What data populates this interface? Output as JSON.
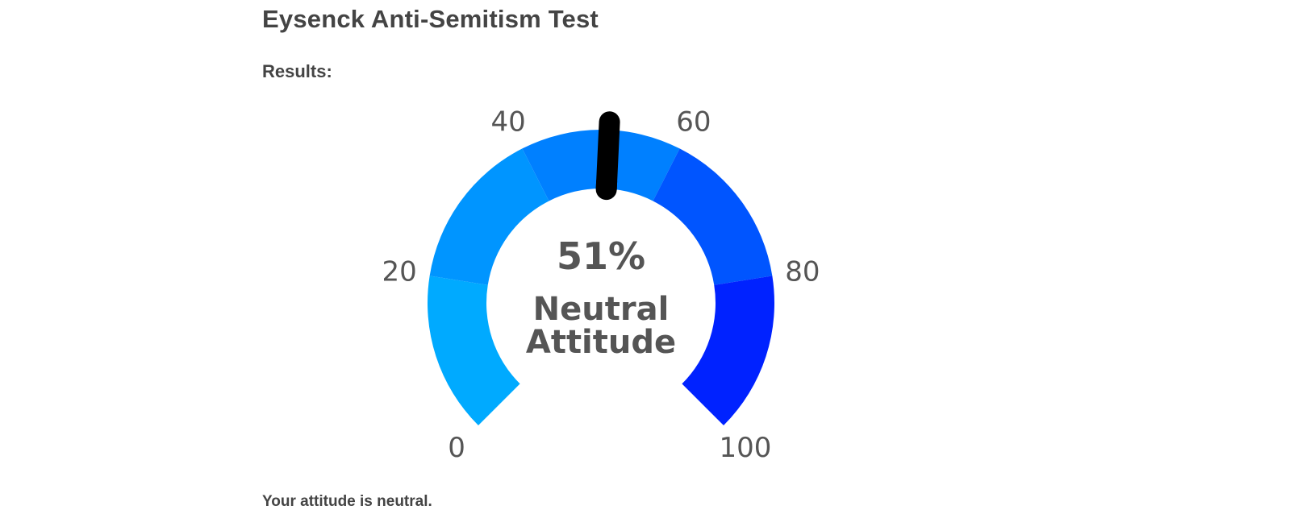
{
  "page": {
    "title": "Eysenck Anti-Semitism Test",
    "results_label": "Results:",
    "summary": "Your attitude is neutral."
  },
  "gauge": {
    "value": 51,
    "value_text": "51%",
    "label_line1": "Neutral",
    "label_line2": "Attitude",
    "min": 0,
    "max": 100,
    "ticks": [
      {
        "value": 0,
        "text": "0"
      },
      {
        "value": 20,
        "text": "20"
      },
      {
        "value": 40,
        "text": "40"
      },
      {
        "value": 60,
        "text": "60"
      },
      {
        "value": 80,
        "text": "80"
      },
      {
        "value": 100,
        "text": "100"
      }
    ],
    "segments": [
      {
        "from": 0,
        "to": 20,
        "color": "#00aaff"
      },
      {
        "from": 20,
        "to": 40,
        "color": "#0095ff"
      },
      {
        "from": 40,
        "to": 60,
        "color": "#0080ff"
      },
      {
        "from": 60,
        "to": 80,
        "color": "#0055ff"
      },
      {
        "from": 80,
        "to": 100,
        "color": "#0022ff"
      }
    ],
    "needle_color": "#000000"
  }
}
